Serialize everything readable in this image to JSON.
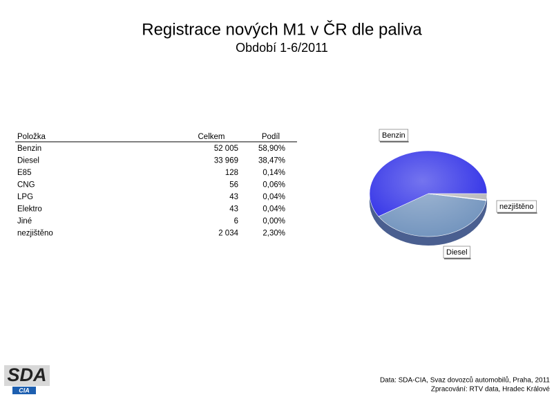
{
  "header": {
    "title": "Registrace nových M1 v ČR dle paliva",
    "subtitle": "Období 1-6/2011"
  },
  "table": {
    "columns": [
      "Položka",
      "Celkem",
      "Podíl"
    ],
    "rows": [
      [
        "Benzin",
        "52 005",
        "58,90%"
      ],
      [
        "Diesel",
        "33 969",
        "38,47%"
      ],
      [
        "E85",
        "128",
        "0,14%"
      ],
      [
        "CNG",
        "56",
        "0,06%"
      ],
      [
        "LPG",
        "43",
        "0,04%"
      ],
      [
        "Elektro",
        "43",
        "0,04%"
      ],
      [
        "Jiné",
        "6",
        "0,00%"
      ],
      [
        "nezjištěno",
        "2 034",
        "2,30%"
      ]
    ]
  },
  "chart_data": {
    "type": "pie",
    "categories": [
      "Benzin",
      "Diesel",
      null,
      null,
      null,
      null,
      null,
      "nezjištěno"
    ],
    "values": [
      58.9,
      38.47,
      0.14,
      0.06,
      0.04,
      0.04,
      0.0,
      2.3
    ],
    "colors": [
      "#2a2ae6",
      "#7193bd",
      "#9a6fa8",
      "#e8e0a0",
      "#a0d8e0",
      "#806080",
      "#f08080",
      "#b8b8b8"
    ]
  },
  "footer": {
    "logo": {
      "main": "SDA",
      "sub": "CIA"
    },
    "source": "Data: SDA-CIA, Svaz dovozců automobilů, Praha, 2011",
    "processing": "Zpracování: RTV data, Hradec Králové"
  }
}
